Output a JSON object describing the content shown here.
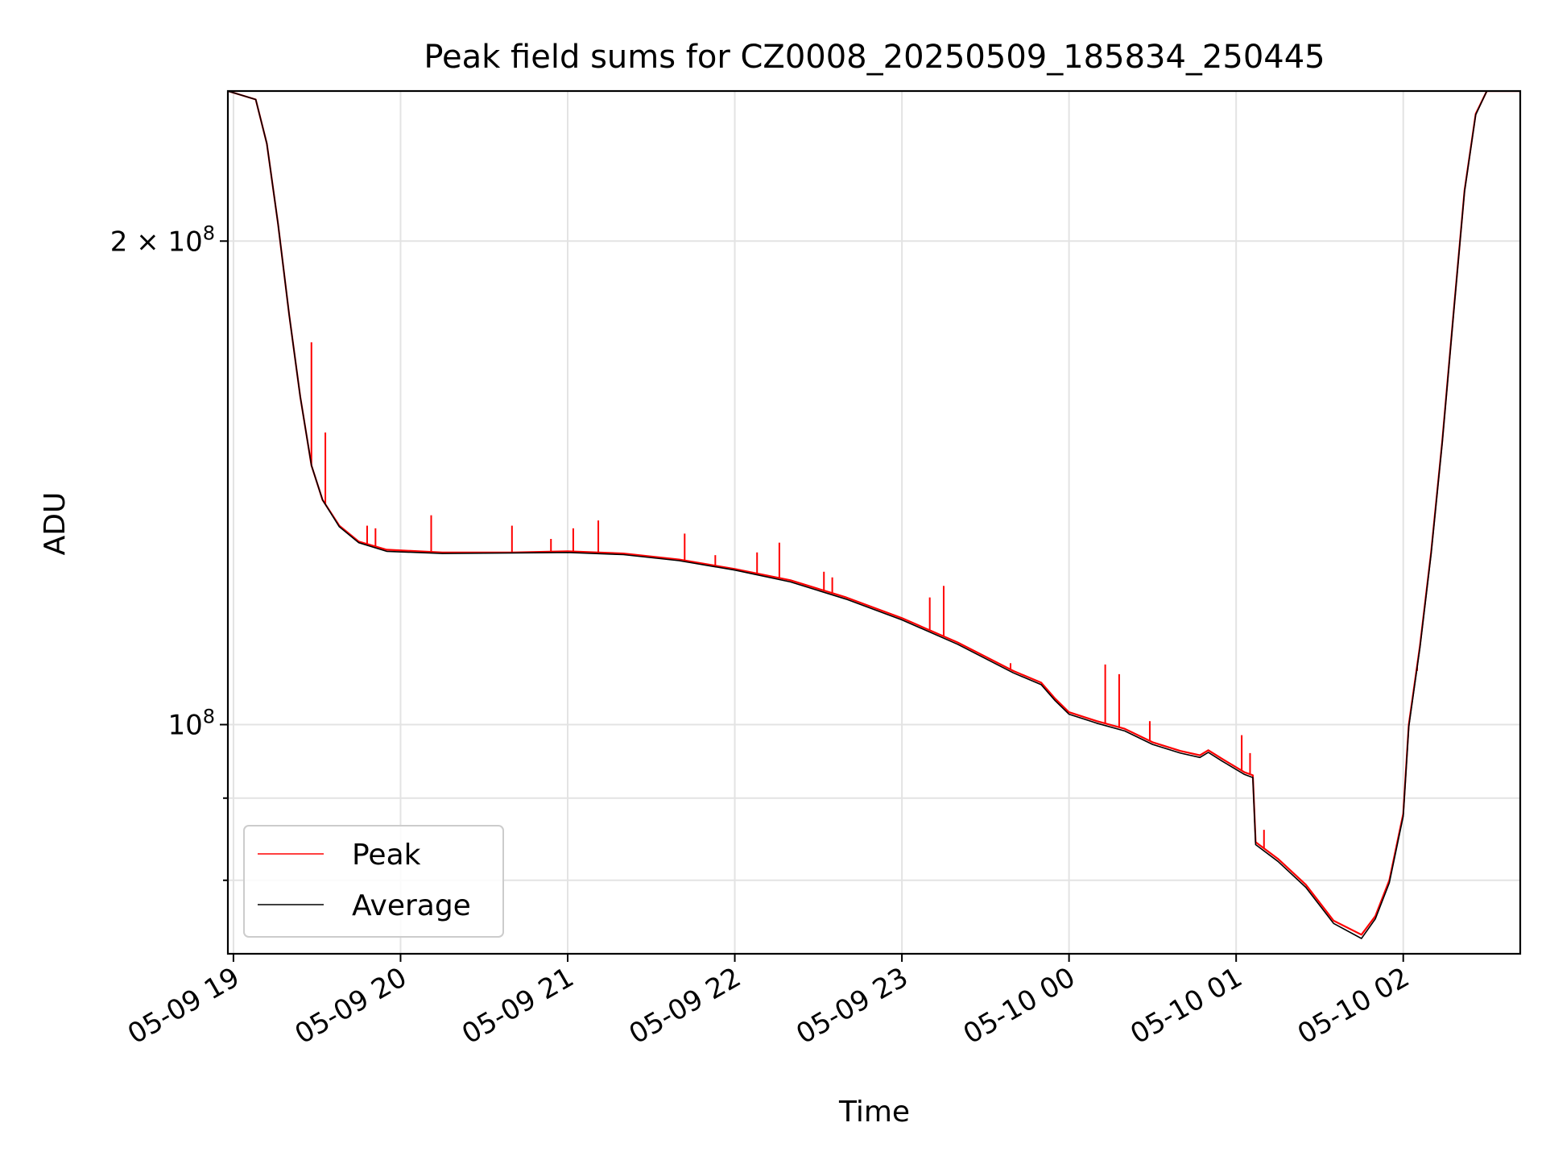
{
  "chart_data": {
    "type": "line",
    "title": "Peak field sums for CZ0008_20250509_185834_250445",
    "xlabel": "Time",
    "ylabel": "ADU",
    "y_scale": "log",
    "ylim": [
      72000000,
      248000000
    ],
    "xlim": [
      "2025-05-09 18:58",
      "2025-05-10 02:42"
    ],
    "grid": true,
    "legend_position": "lower-left",
    "x_ticks": [
      {
        "t": "2025-05-09 19:00",
        "label": "05-09 19"
      },
      {
        "t": "2025-05-09 20:00",
        "label": "05-09 20"
      },
      {
        "t": "2025-05-09 21:00",
        "label": "05-09 21"
      },
      {
        "t": "2025-05-09 22:00",
        "label": "05-09 22"
      },
      {
        "t": "2025-05-09 23:00",
        "label": "05-09 23"
      },
      {
        "t": "2025-05-10 00:00",
        "label": "05-10 00"
      },
      {
        "t": "2025-05-10 01:00",
        "label": "05-10 01"
      },
      {
        "t": "2025-05-10 02:00",
        "label": "05-10 02"
      }
    ],
    "y_major_ticks": [
      {
        "value": 100000000,
        "base": "10",
        "exp": "8"
      },
      {
        "value": 200000000,
        "base": "2 × 10",
        "exp": "8"
      }
    ],
    "y_minor_ticks": [
      80000000,
      90000000
    ],
    "series": [
      {
        "name": "Peak",
        "color": "#ff0000",
        "points": [
          [
            "2025-05-09 18:58",
            248000000
          ],
          [
            "2025-05-09 19:08",
            245000000
          ],
          [
            "2025-05-09 19:12",
            230000000
          ],
          [
            "2025-05-09 19:16",
            205000000
          ],
          [
            "2025-05-09 19:20",
            180000000
          ],
          [
            "2025-05-09 19:24",
            160000000
          ],
          [
            "2025-05-09 19:28",
            145000000
          ],
          [
            "2025-05-09 19:32",
            138000000
          ],
          [
            "2025-05-09 19:38",
            133000000
          ],
          [
            "2025-05-09 19:45",
            130000000
          ],
          [
            "2025-05-09 19:55",
            128500000
          ],
          [
            "2025-05-09 20:15",
            128000000
          ],
          [
            "2025-05-09 20:40",
            128000000
          ],
          [
            "2025-05-09 21:00",
            128200000
          ],
          [
            "2025-05-09 21:20",
            127800000
          ],
          [
            "2025-05-09 21:40",
            126700000
          ],
          [
            "2025-05-09 22:00",
            125000000
          ],
          [
            "2025-05-09 22:20",
            123000000
          ],
          [
            "2025-05-09 22:40",
            120000000
          ],
          [
            "2025-05-09 23:00",
            116500000
          ],
          [
            "2025-05-09 23:20",
            112500000
          ],
          [
            "2025-05-09 23:40",
            108000000
          ],
          [
            "2025-05-09 23:50",
            106200000
          ],
          [
            "2025-05-09 23:55",
            103800000
          ],
          [
            "2025-05-10 00:00",
            101800000
          ],
          [
            "2025-05-10 00:10",
            100500000
          ],
          [
            "2025-05-10 00:20",
            99400000
          ],
          [
            "2025-05-10 00:30",
            97500000
          ],
          [
            "2025-05-10 00:40",
            96300000
          ],
          [
            "2025-05-10 00:47",
            95700000
          ],
          [
            "2025-05-10 00:50",
            96400000
          ],
          [
            "2025-05-10 00:55",
            95200000
          ],
          [
            "2025-05-10 01:03",
            93400000
          ],
          [
            "2025-05-10 01:06",
            93000000
          ],
          [
            "2025-05-10 01:07",
            84500000
          ],
          [
            "2025-05-10 01:15",
            82500000
          ],
          [
            "2025-05-10 01:25",
            79500000
          ],
          [
            "2025-05-10 01:35",
            75500000
          ],
          [
            "2025-05-10 01:45",
            74000000
          ],
          [
            "2025-05-10 01:50",
            76000000
          ],
          [
            "2025-05-10 01:55",
            80000000
          ],
          [
            "2025-05-10 02:00",
            88000000
          ],
          [
            "2025-05-10 02:02",
            100000000
          ],
          [
            "2025-05-10 02:06",
            112000000
          ],
          [
            "2025-05-10 02:10",
            128000000
          ],
          [
            "2025-05-10 02:14",
            150000000
          ],
          [
            "2025-05-10 02:18",
            180000000
          ],
          [
            "2025-05-10 02:22",
            215000000
          ],
          [
            "2025-05-10 02:26",
            240000000
          ],
          [
            "2025-05-10 02:30",
            248000000
          ],
          [
            "2025-05-10 02:42",
            248000000
          ]
        ],
        "spikes": [
          [
            "2025-05-09 19:28",
            173000000
          ],
          [
            "2025-05-09 19:33",
            152000000
          ],
          [
            "2025-05-09 19:48",
            133000000
          ],
          [
            "2025-05-09 19:51",
            132500000
          ],
          [
            "2025-05-09 20:11",
            135000000
          ],
          [
            "2025-05-09 20:40",
            133000000
          ],
          [
            "2025-05-09 20:54",
            130500000
          ],
          [
            "2025-05-09 21:02",
            132500000
          ],
          [
            "2025-05-09 21:11",
            134000000
          ],
          [
            "2025-05-09 21:42",
            131500000
          ],
          [
            "2025-05-09 21:53",
            127500000
          ],
          [
            "2025-05-09 22:08",
            128000000
          ],
          [
            "2025-05-09 22:16",
            129800000
          ],
          [
            "2025-05-09 22:32",
            124500000
          ],
          [
            "2025-05-09 22:35",
            123500000
          ],
          [
            "2025-05-09 23:10",
            120000000
          ],
          [
            "2025-05-09 23:15",
            122000000
          ],
          [
            "2025-05-09 23:39",
            109200000
          ],
          [
            "2025-05-10 00:13",
            109000000
          ],
          [
            "2025-05-10 00:18",
            107500000
          ],
          [
            "2025-05-10 00:29",
            100500000
          ],
          [
            "2025-05-10 01:02",
            98500000
          ],
          [
            "2025-05-10 01:05",
            96000000
          ],
          [
            "2025-05-10 01:10",
            86000000
          ],
          [
            "2025-05-10 02:05",
            108000000
          ]
        ]
      },
      {
        "name": "Average",
        "color": "#000000",
        "points": [
          [
            "2025-05-09 18:58",
            248000000
          ],
          [
            "2025-05-09 19:08",
            245000000
          ],
          [
            "2025-05-09 19:12",
            230000000
          ],
          [
            "2025-05-09 19:16",
            205000000
          ],
          [
            "2025-05-09 19:20",
            180000000
          ],
          [
            "2025-05-09 19:24",
            160000000
          ],
          [
            "2025-05-09 19:28",
            145000000
          ],
          [
            "2025-05-09 19:32",
            138000000
          ],
          [
            "2025-05-09 19:38",
            132800000
          ],
          [
            "2025-05-09 19:45",
            129800000
          ],
          [
            "2025-05-09 19:55",
            128200000
          ],
          [
            "2025-05-09 20:15",
            127800000
          ],
          [
            "2025-05-09 20:40",
            127900000
          ],
          [
            "2025-05-09 21:00",
            128000000
          ],
          [
            "2025-05-09 21:20",
            127600000
          ],
          [
            "2025-05-09 21:40",
            126500000
          ],
          [
            "2025-05-09 22:00",
            124800000
          ],
          [
            "2025-05-09 22:20",
            122700000
          ],
          [
            "2025-05-09 22:40",
            119700000
          ],
          [
            "2025-05-09 23:00",
            116200000
          ],
          [
            "2025-05-09 23:20",
            112200000
          ],
          [
            "2025-05-09 23:40",
            107700000
          ],
          [
            "2025-05-09 23:50",
            105900000
          ],
          [
            "2025-05-09 23:55",
            103500000
          ],
          [
            "2025-05-10 00:00",
            101500000
          ],
          [
            "2025-05-10 00:10",
            100200000
          ],
          [
            "2025-05-10 00:20",
            99100000
          ],
          [
            "2025-05-10 00:30",
            97200000
          ],
          [
            "2025-05-10 00:40",
            96000000
          ],
          [
            "2025-05-10 00:47",
            95400000
          ],
          [
            "2025-05-10 00:50",
            96100000
          ],
          [
            "2025-05-10 00:55",
            94900000
          ],
          [
            "2025-05-10 01:03",
            93100000
          ],
          [
            "2025-05-10 01:06",
            92700000
          ],
          [
            "2025-05-10 01:07",
            84200000
          ],
          [
            "2025-05-10 01:15",
            82200000
          ],
          [
            "2025-05-10 01:25",
            79200000
          ],
          [
            "2025-05-10 01:35",
            75200000
          ],
          [
            "2025-05-10 01:45",
            73600000
          ],
          [
            "2025-05-10 01:50",
            75700000
          ],
          [
            "2025-05-10 01:55",
            79700000
          ],
          [
            "2025-05-10 02:00",
            87700000
          ],
          [
            "2025-05-10 02:02",
            99700000
          ],
          [
            "2025-05-10 02:06",
            111700000
          ],
          [
            "2025-05-10 02:10",
            127700000
          ],
          [
            "2025-05-10 02:14",
            149700000
          ],
          [
            "2025-05-10 02:18",
            179700000
          ],
          [
            "2025-05-10 02:22",
            214700000
          ],
          [
            "2025-05-10 02:26",
            239700000
          ],
          [
            "2025-05-10 02:30",
            248000000
          ],
          [
            "2025-05-10 02:42",
            248000000
          ]
        ]
      }
    ]
  }
}
